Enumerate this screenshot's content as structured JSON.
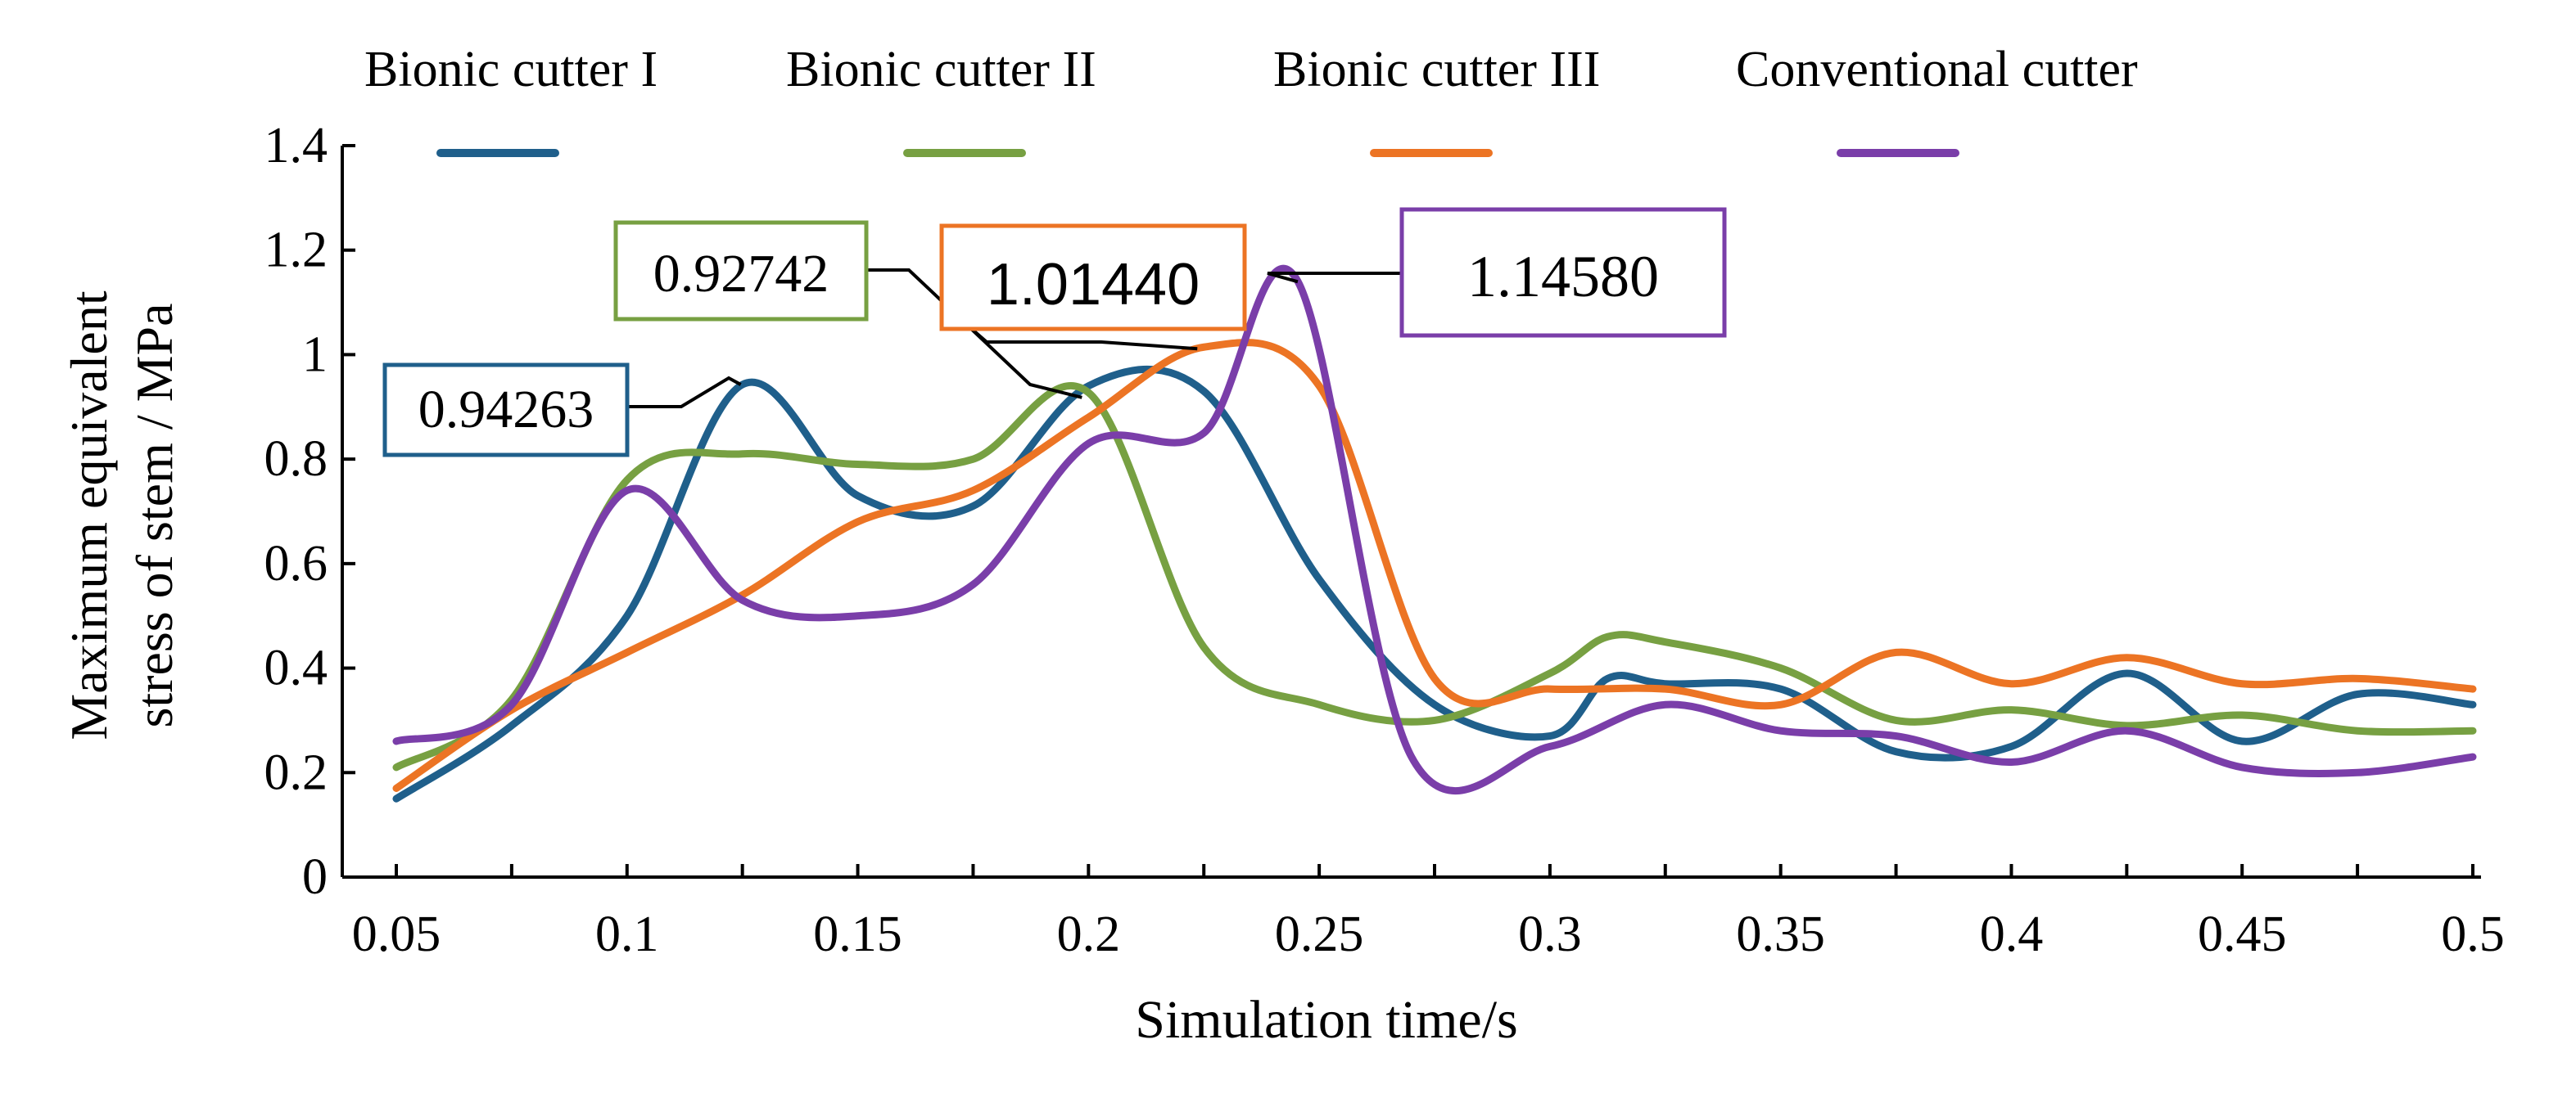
{
  "chart_data": {
    "type": "line",
    "title": "",
    "xlabel": "Simulation time/s",
    "ylabel_line1": "Maximum equivalent",
    "ylabel_line2": "stress of stem / MPa",
    "xlim": [
      0.05,
      0.5
    ],
    "ylim": [
      0,
      1.4
    ],
    "x_ticks": [
      0.05,
      0.1,
      0.15,
      0.2,
      0.25,
      0.3,
      0.35,
      0.4,
      0.45,
      0.5
    ],
    "x_tick_labels": [
      "0.05",
      "0.1",
      "0.15",
      "0.2",
      "0.25",
      "0.3",
      "0.35",
      "0.4",
      "0.45",
      "0.5"
    ],
    "y_ticks": [
      0,
      0.2,
      0.4,
      0.6,
      0.8,
      1.0,
      1.2,
      1.4
    ],
    "y_tick_labels": [
      "0",
      "0.2",
      "0.4",
      "0.6",
      "0.8",
      "1",
      "1.2",
      "1.4"
    ],
    "legend_position": "top",
    "series": [
      {
        "name": "Bionic cutter I",
        "color": "#1f5f8b",
        "x": [
          0.05,
          0.075,
          0.1,
          0.125,
          0.15,
          0.175,
          0.2,
          0.225,
          0.25,
          0.275,
          0.3,
          0.3125,
          0.325,
          0.35,
          0.375,
          0.4,
          0.425,
          0.45,
          0.475,
          0.5
        ],
        "y": [
          0.15,
          0.29,
          0.5,
          0.94263,
          0.73,
          0.71,
          0.94,
          0.93,
          0.57,
          0.33,
          0.27,
          0.38,
          0.37,
          0.36,
          0.24,
          0.25,
          0.39,
          0.26,
          0.35,
          0.33
        ]
      },
      {
        "name": "Bionic cutter II",
        "color": "#77a042",
        "x": [
          0.05,
          0.075,
          0.1,
          0.125,
          0.15,
          0.175,
          0.2,
          0.225,
          0.25,
          0.275,
          0.3,
          0.3125,
          0.325,
          0.35,
          0.375,
          0.4,
          0.425,
          0.45,
          0.475,
          0.5
        ],
        "y": [
          0.21,
          0.34,
          0.76,
          0.81,
          0.79,
          0.8,
          0.92742,
          0.44,
          0.33,
          0.3,
          0.39,
          0.46,
          0.45,
          0.4,
          0.3,
          0.32,
          0.29,
          0.31,
          0.28,
          0.28
        ]
      },
      {
        "name": "Bionic cutter III",
        "color": "#ec7424",
        "x": [
          0.05,
          0.075,
          0.1,
          0.125,
          0.15,
          0.175,
          0.2,
          0.225,
          0.25,
          0.275,
          0.3,
          0.325,
          0.35,
          0.375,
          0.4,
          0.425,
          0.45,
          0.475,
          0.5
        ],
        "y": [
          0.17,
          0.32,
          0.43,
          0.54,
          0.68,
          0.74,
          0.88,
          1.0144,
          0.94,
          0.38,
          0.36,
          0.36,
          0.33,
          0.43,
          0.37,
          0.42,
          0.37,
          0.38,
          0.36
        ]
      },
      {
        "name": "Conventional cutter",
        "color": "#7a3ea9",
        "x": [
          0.05,
          0.075,
          0.1,
          0.125,
          0.15,
          0.175,
          0.2,
          0.225,
          0.245,
          0.27,
          0.3,
          0.325,
          0.35,
          0.375,
          0.4,
          0.425,
          0.45,
          0.475,
          0.5
        ],
        "y": [
          0.26,
          0.33,
          0.74,
          0.53,
          0.5,
          0.56,
          0.83,
          0.85,
          1.1458,
          0.23,
          0.25,
          0.33,
          0.28,
          0.27,
          0.22,
          0.28,
          0.21,
          0.2,
          0.23
        ]
      }
    ],
    "annotations": [
      {
        "series": "Bionic cutter I",
        "label": "0.94263",
        "x": 0.125,
        "y": 0.94263,
        "color": "#1f5f8b",
        "font": "serif"
      },
      {
        "series": "Bionic cutter II",
        "label": "0.92742",
        "x": 0.2,
        "y": 0.92742,
        "color": "#77a042",
        "font": "serif"
      },
      {
        "series": "Bionic cutter III",
        "label": "1.01440",
        "x": 0.225,
        "y": 1.0144,
        "color": "#ec7424",
        "font": "sans"
      },
      {
        "series": "Conventional cutter",
        "label": "1.14580",
        "x": 0.245,
        "y": 1.1458,
        "color": "#7a3ea9",
        "font": "serif"
      }
    ]
  }
}
